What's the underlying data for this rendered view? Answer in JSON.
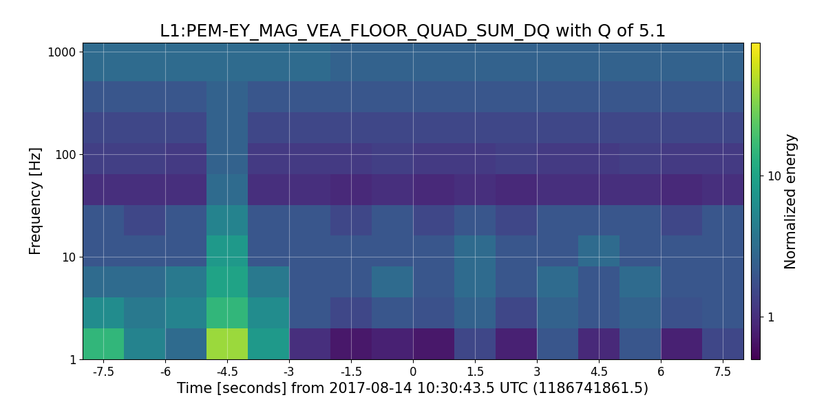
{
  "chart_data": {
    "type": "heatmap",
    "title": "L1:PEM-EY_MAG_VEA_FLOOR_QUAD_SUM_DQ with Q of 5.1",
    "x_label": "Time [seconds] from 2017-08-14 10:30:43.5 UTC (1186741861.5)",
    "y_label": "Frequency [Hz]",
    "x_edges": [
      -8,
      -7,
      -6,
      -5,
      -4,
      -3,
      -2,
      -1,
      0,
      1,
      2,
      3,
      4,
      5,
      6,
      7,
      8
    ],
    "y_edges": [
      1,
      2,
      4,
      8,
      16,
      32,
      64,
      128,
      256,
      512,
      1220
    ],
    "cells": [
      [
        15,
        5,
        3,
        40,
        8,
        1,
        0.7,
        0.8,
        0.7,
        1.5,
        0.8,
        2,
        0.9,
        2,
        0.8,
        1.5
      ],
      [
        6,
        4,
        5,
        15,
        6,
        2,
        1.5,
        2,
        1.8,
        2.5,
        1.5,
        2.5,
        2,
        2.5,
        1.8,
        2
      ],
      [
        3,
        3,
        4,
        10,
        4,
        2,
        2,
        3,
        2,
        3,
        2,
        3,
        2,
        3,
        2,
        2
      ],
      [
        2,
        2,
        2,
        8,
        2,
        2,
        2,
        2,
        2,
        3,
        2,
        2,
        3,
        2,
        2,
        2
      ],
      [
        2,
        1.5,
        2,
        5,
        2,
        2,
        1.5,
        2,
        1.5,
        2,
        1.5,
        2,
        2,
        2,
        1.5,
        2
      ],
      [
        1,
        1,
        1,
        3,
        1,
        1,
        0.9,
        1,
        0.9,
        1,
        0.9,
        1,
        1,
        1,
        0.9,
        1
      ],
      [
        1.3,
        1.3,
        1.2,
        2.5,
        1.2,
        1.2,
        1.2,
        1.3,
        1.2,
        1.2,
        1.3,
        1.2,
        1.2,
        1.3,
        1.2,
        1.2
      ],
      [
        1.5,
        1.5,
        1.5,
        2.5,
        1.5,
        1.5,
        1.5,
        1.5,
        1.5,
        1.5,
        1.5,
        1.5,
        1.5,
        1.5,
        1.5,
        1.5
      ],
      [
        2,
        2,
        2,
        2.5,
        2,
        2,
        2,
        2,
        2,
        2,
        2,
        2,
        2,
        2,
        2,
        2
      ],
      [
        3,
        3,
        3,
        3,
        3,
        3,
        2.5,
        2.5,
        2.5,
        2.5,
        2.5,
        2.5,
        2.5,
        2.5,
        2.5,
        2.5
      ]
    ],
    "xlim": [
      -8,
      8
    ],
    "ylim": [
      1,
      1220
    ],
    "xticks": [
      -7.5,
      -6,
      -4.5,
      -3,
      -1.5,
      0,
      1.5,
      3,
      4.5,
      6,
      7.5
    ],
    "yticks": [
      1,
      10,
      100,
      1000
    ],
    "log": "y",
    "grid": true,
    "colorbar": {
      "label": "Normalized energy",
      "lim": [
        0.5,
        87
      ],
      "ticks": [
        1,
        10
      ],
      "log": true
    }
  }
}
